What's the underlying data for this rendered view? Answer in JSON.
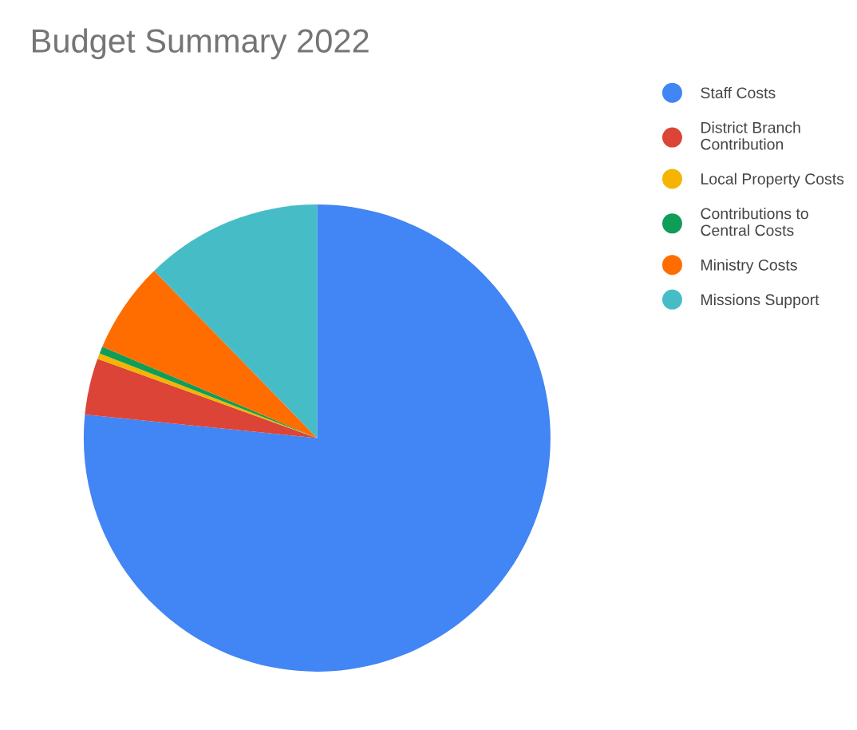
{
  "chart_data": {
    "type": "pie",
    "title": "Budget Summary 2022",
    "categories": [
      "Staff Costs",
      "District Branch\nContribution",
      "Local Property Costs",
      "Contributions to\nCentral Costs",
      "Ministry Costs",
      "Missions Support"
    ],
    "values": [
      76.6,
      3.9,
      0.4,
      0.5,
      6.3,
      12.3
    ],
    "colors": [
      "#4285f4",
      "#db4437",
      "#f4b400",
      "#0f9d58",
      "#ff6d01",
      "#46bdc6"
    ],
    "legend": "right"
  }
}
